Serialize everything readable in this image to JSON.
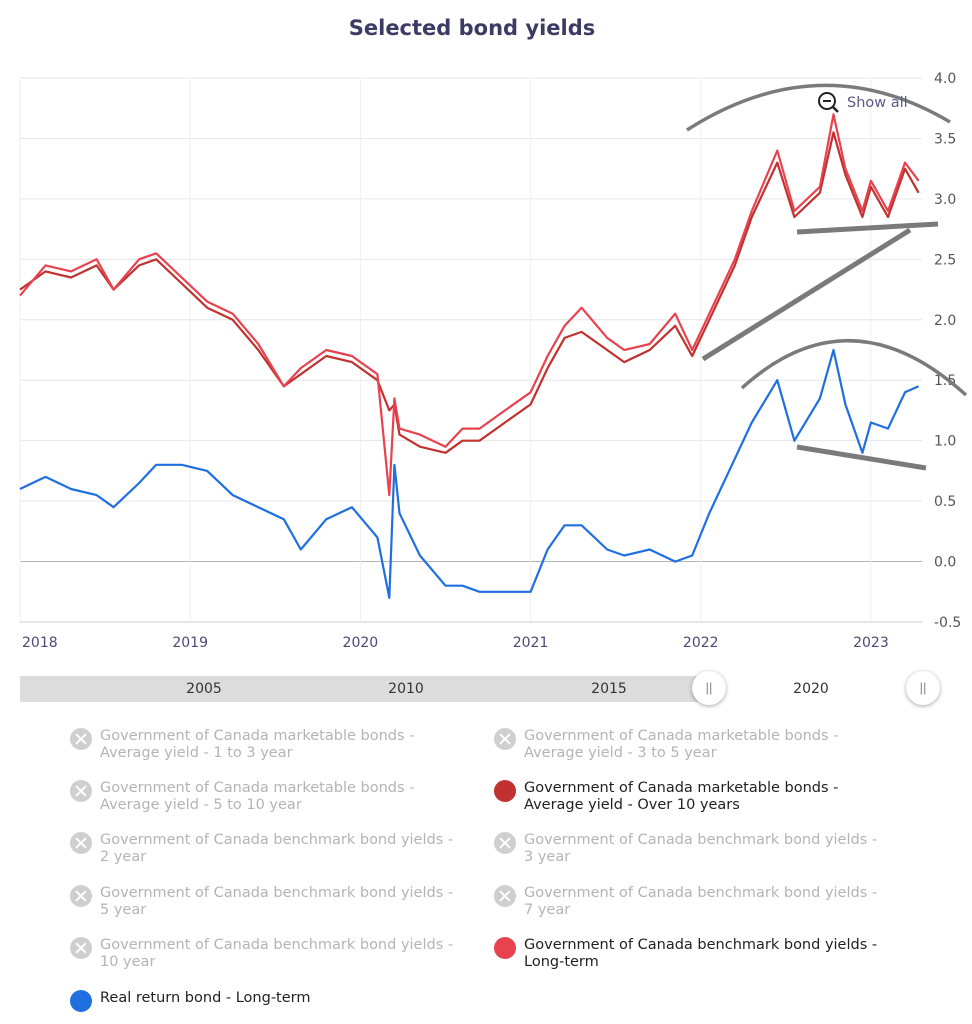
{
  "chart_data": {
    "type": "line",
    "title": "Selected bond yields",
    "show_all_label": "Show all",
    "x_ticks": [
      "2018",
      "2019",
      "2020",
      "2021",
      "2022",
      "2023"
    ],
    "x_tick_years": [
      2018,
      2019,
      2020,
      2021,
      2022,
      2023
    ],
    "xlim": [
      2018.0,
      2023.3
    ],
    "ylim": [
      -0.5,
      4.0
    ],
    "y_ticks": [
      "4.0",
      "3.5",
      "3.0",
      "2.5",
      "2.0",
      "1.5",
      "1.0",
      "0.5",
      "0.0",
      "-0.5"
    ],
    "y_tick_values": [
      4.0,
      3.5,
      3.0,
      2.5,
      2.0,
      1.5,
      1.0,
      0.5,
      0.0,
      -0.5
    ],
    "grid": true,
    "legend_placement": "bottom",
    "series": [
      {
        "name": "Government of Canada marketable bonds - Average yield - Over 10 years",
        "color": "#c0312f",
        "x": [
          2018.0,
          2018.15,
          2018.3,
          2018.45,
          2018.55,
          2018.7,
          2018.8,
          2018.95,
          2019.1,
          2019.25,
          2019.4,
          2019.55,
          2019.65,
          2019.8,
          2019.95,
          2020.1,
          2020.17,
          2020.2,
          2020.23,
          2020.35,
          2020.5,
          2020.6,
          2020.7,
          2020.85,
          2021.0,
          2021.1,
          2021.2,
          2021.3,
          2021.45,
          2021.55,
          2021.7,
          2021.85,
          2021.95,
          2022.05,
          2022.2,
          2022.3,
          2022.45,
          2022.55,
          2022.7,
          2022.78,
          2022.85,
          2022.95,
          2023.0,
          2023.1,
          2023.2,
          2023.28
        ],
        "y": [
          2.25,
          2.4,
          2.35,
          2.45,
          2.25,
          2.45,
          2.5,
          2.3,
          2.1,
          2.0,
          1.75,
          1.45,
          1.55,
          1.7,
          1.65,
          1.5,
          1.25,
          1.3,
          1.05,
          0.95,
          0.9,
          1.0,
          1.0,
          1.15,
          1.3,
          1.6,
          1.85,
          1.9,
          1.75,
          1.65,
          1.75,
          1.95,
          1.7,
          2.0,
          2.45,
          2.85,
          3.3,
          2.85,
          3.05,
          3.55,
          3.2,
          2.85,
          3.1,
          2.85,
          3.25,
          3.05
        ]
      },
      {
        "name": "Government of Canada benchmark bond yields - Long-term",
        "color": "#e8424f",
        "x": [
          2018.0,
          2018.15,
          2018.3,
          2018.45,
          2018.55,
          2018.7,
          2018.8,
          2018.95,
          2019.1,
          2019.25,
          2019.4,
          2019.55,
          2019.65,
          2019.8,
          2019.95,
          2020.1,
          2020.17,
          2020.2,
          2020.23,
          2020.35,
          2020.5,
          2020.6,
          2020.7,
          2020.85,
          2021.0,
          2021.1,
          2021.2,
          2021.3,
          2021.45,
          2021.55,
          2021.7,
          2021.85,
          2021.95,
          2022.05,
          2022.2,
          2022.3,
          2022.45,
          2022.55,
          2022.7,
          2022.78,
          2022.85,
          2022.95,
          2023.0,
          2023.1,
          2023.2,
          2023.28
        ],
        "y": [
          2.2,
          2.45,
          2.4,
          2.5,
          2.25,
          2.5,
          2.55,
          2.35,
          2.15,
          2.05,
          1.8,
          1.45,
          1.6,
          1.75,
          1.7,
          1.55,
          0.55,
          1.35,
          1.1,
          1.05,
          0.95,
          1.1,
          1.1,
          1.25,
          1.4,
          1.7,
          1.95,
          2.1,
          1.85,
          1.75,
          1.8,
          2.05,
          1.75,
          2.05,
          2.5,
          2.9,
          3.4,
          2.9,
          3.1,
          3.7,
          3.25,
          2.9,
          3.15,
          2.9,
          3.3,
          3.15
        ]
      },
      {
        "name": "Real return bond - Long-term",
        "color": "#1f6fe0",
        "x": [
          2018.0,
          2018.15,
          2018.3,
          2018.45,
          2018.55,
          2018.7,
          2018.8,
          2018.95,
          2019.1,
          2019.25,
          2019.4,
          2019.55,
          2019.65,
          2019.8,
          2019.95,
          2020.1,
          2020.17,
          2020.2,
          2020.23,
          2020.35,
          2020.5,
          2020.6,
          2020.7,
          2020.85,
          2021.0,
          2021.1,
          2021.2,
          2021.3,
          2021.45,
          2021.55,
          2021.7,
          2021.85,
          2021.95,
          2022.05,
          2022.2,
          2022.3,
          2022.45,
          2022.55,
          2022.7,
          2022.78,
          2022.85,
          2022.95,
          2023.0,
          2023.1,
          2023.2,
          2023.28
        ],
        "y": [
          0.6,
          0.7,
          0.6,
          0.55,
          0.45,
          0.65,
          0.8,
          0.8,
          0.75,
          0.55,
          0.45,
          0.35,
          0.1,
          0.35,
          0.45,
          0.2,
          -0.3,
          0.8,
          0.4,
          0.05,
          -0.2,
          -0.2,
          -0.25,
          -0.25,
          -0.25,
          0.1,
          0.3,
          0.3,
          0.1,
          0.05,
          0.1,
          0.0,
          0.05,
          0.4,
          0.85,
          1.15,
          1.5,
          1.0,
          1.35,
          1.75,
          1.3,
          0.9,
          1.15,
          1.1,
          1.4,
          1.45
        ]
      }
    ]
  },
  "navigator": {
    "labels": [
      "2005",
      "2010",
      "2015",
      "2020"
    ],
    "handle_glyph": "||"
  },
  "legend": [
    {
      "label": "Government of Canada marketable bonds - Average yield - 1 to 3 year",
      "active": false
    },
    {
      "label": "Government of Canada marketable bonds - Average yield - 3 to 5 year",
      "active": false
    },
    {
      "label": "Government of Canada marketable bonds - Average yield - 5 to 10 year",
      "active": false
    },
    {
      "label": "Government of Canada marketable bonds - Average yield - Over 10 years",
      "active": true,
      "color": "#c0312f"
    },
    {
      "label": "Government of Canada benchmark bond yields - 2 year",
      "active": false
    },
    {
      "label": "Government of Canada benchmark bond yields - 3 year",
      "active": false
    },
    {
      "label": "Government of Canada benchmark bond yields - 5 year",
      "active": false
    },
    {
      "label": "Government of Canada benchmark bond yields - 7 year",
      "active": false
    },
    {
      "label": "Government of Canada benchmark bond yields - 10 year",
      "active": false
    },
    {
      "label": "Government of Canada benchmark bond yields - Long-term",
      "active": true,
      "color": "#e8424f"
    },
    {
      "label": "Real return bond - Long-term",
      "active": true,
      "color": "#1f6fe0"
    }
  ]
}
